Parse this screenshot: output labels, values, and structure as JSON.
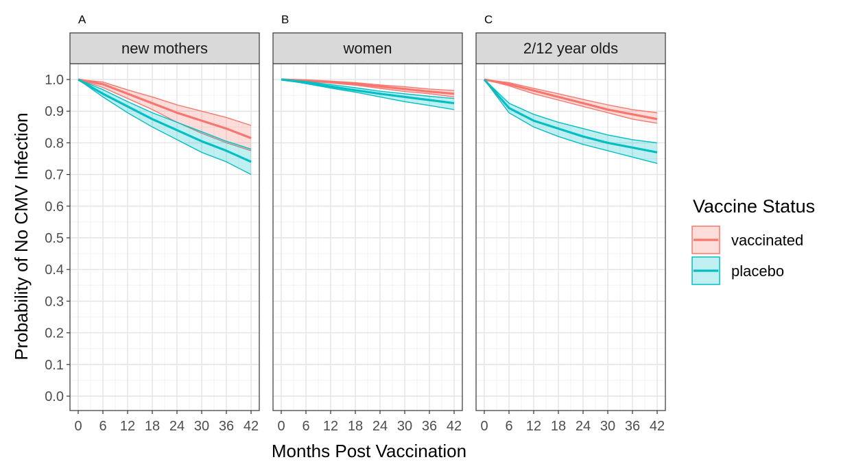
{
  "chart_data": {
    "type": "line",
    "subtype": "survival curves with confidence ribbons, 3 facets",
    "xlabel": "Months Post Vaccination",
    "ylabel": "Probability of No CMV Infection",
    "xlim": [
      0,
      42
    ],
    "ylim": [
      0,
      1
    ],
    "x_ticks": [
      0,
      6,
      12,
      18,
      24,
      30,
      36,
      42
    ],
    "y_ticks": [
      0.0,
      0.1,
      0.2,
      0.3,
      0.4,
      0.5,
      0.6,
      0.7,
      0.8,
      0.9,
      1.0
    ],
    "y_tick_labels": [
      "0.0",
      "0.1",
      "0.2",
      "0.3",
      "0.4",
      "0.5",
      "0.6",
      "0.7",
      "0.8",
      "0.9",
      "1.0"
    ],
    "grid": true,
    "legend": {
      "title": "Vaccine Status",
      "position": "right",
      "entries": [
        {
          "label": "vaccinated",
          "color": "#f8766d"
        },
        {
          "label": "placebo",
          "color": "#00bfc4"
        }
      ]
    },
    "colors": {
      "vaccinated": "#f8766d",
      "placebo": "#00bfc4"
    },
    "x": [
      0,
      6,
      12,
      18,
      24,
      30,
      36,
      42
    ],
    "panels": [
      {
        "letter": "A",
        "strip": "new mothers",
        "series": [
          {
            "name": "vaccinated",
            "estimate": [
              1.0,
              0.985,
              0.955,
              0.925,
              0.895,
              0.87,
              0.845,
              0.815
            ],
            "lower": [
              1.0,
              0.975,
              0.94,
              0.905,
              0.865,
              0.83,
              0.8,
              0.775
            ],
            "upper": [
              1.0,
              0.992,
              0.967,
              0.945,
              0.92,
              0.9,
              0.88,
              0.855
            ]
          },
          {
            "name": "placebo",
            "estimate": [
              1.0,
              0.955,
              0.915,
              0.875,
              0.84,
              0.805,
              0.775,
              0.74
            ],
            "lower": [
              1.0,
              0.945,
              0.895,
              0.85,
              0.81,
              0.77,
              0.74,
              0.7
            ],
            "upper": [
              1.0,
              0.968,
              0.93,
              0.895,
              0.865,
              0.835,
              0.805,
              0.78
            ]
          }
        ]
      },
      {
        "letter": "B",
        "strip": "women",
        "series": [
          {
            "name": "vaccinated",
            "estimate": [
              1.0,
              0.997,
              0.992,
              0.986,
              0.978,
              0.97,
              0.962,
              0.955
            ],
            "lower": [
              1.0,
              0.995,
              0.989,
              0.982,
              0.972,
              0.962,
              0.955,
              0.945
            ],
            "upper": [
              1.0,
              0.999,
              0.995,
              0.99,
              0.983,
              0.977,
              0.97,
              0.965
            ]
          },
          {
            "name": "placebo",
            "estimate": [
              1.0,
              0.99,
              0.978,
              0.966,
              0.955,
              0.945,
              0.935,
              0.925
            ],
            "lower": [
              1.0,
              0.987,
              0.973,
              0.96,
              0.945,
              0.93,
              0.918,
              0.905
            ],
            "upper": [
              1.0,
              0.994,
              0.984,
              0.974,
              0.963,
              0.955,
              0.947,
              0.94
            ]
          }
        ]
      },
      {
        "letter": "C",
        "strip": "2/12 year olds",
        "series": [
          {
            "name": "vaccinated",
            "estimate": [
              1.0,
              0.985,
              0.965,
              0.945,
              0.925,
              0.905,
              0.89,
              0.875
            ],
            "lower": [
              1.0,
              0.98,
              0.955,
              0.935,
              0.915,
              0.895,
              0.875,
              0.862
            ],
            "upper": [
              1.0,
              0.99,
              0.972,
              0.955,
              0.937,
              0.92,
              0.905,
              0.895
            ]
          },
          {
            "name": "placebo",
            "estimate": [
              1.0,
              0.91,
              0.87,
              0.845,
              0.82,
              0.8,
              0.785,
              0.77
            ],
            "lower": [
              1.0,
              0.895,
              0.85,
              0.82,
              0.795,
              0.775,
              0.755,
              0.735
            ],
            "upper": [
              1.0,
              0.925,
              0.89,
              0.865,
              0.845,
              0.825,
              0.81,
              0.8
            ]
          }
        ]
      }
    ]
  }
}
